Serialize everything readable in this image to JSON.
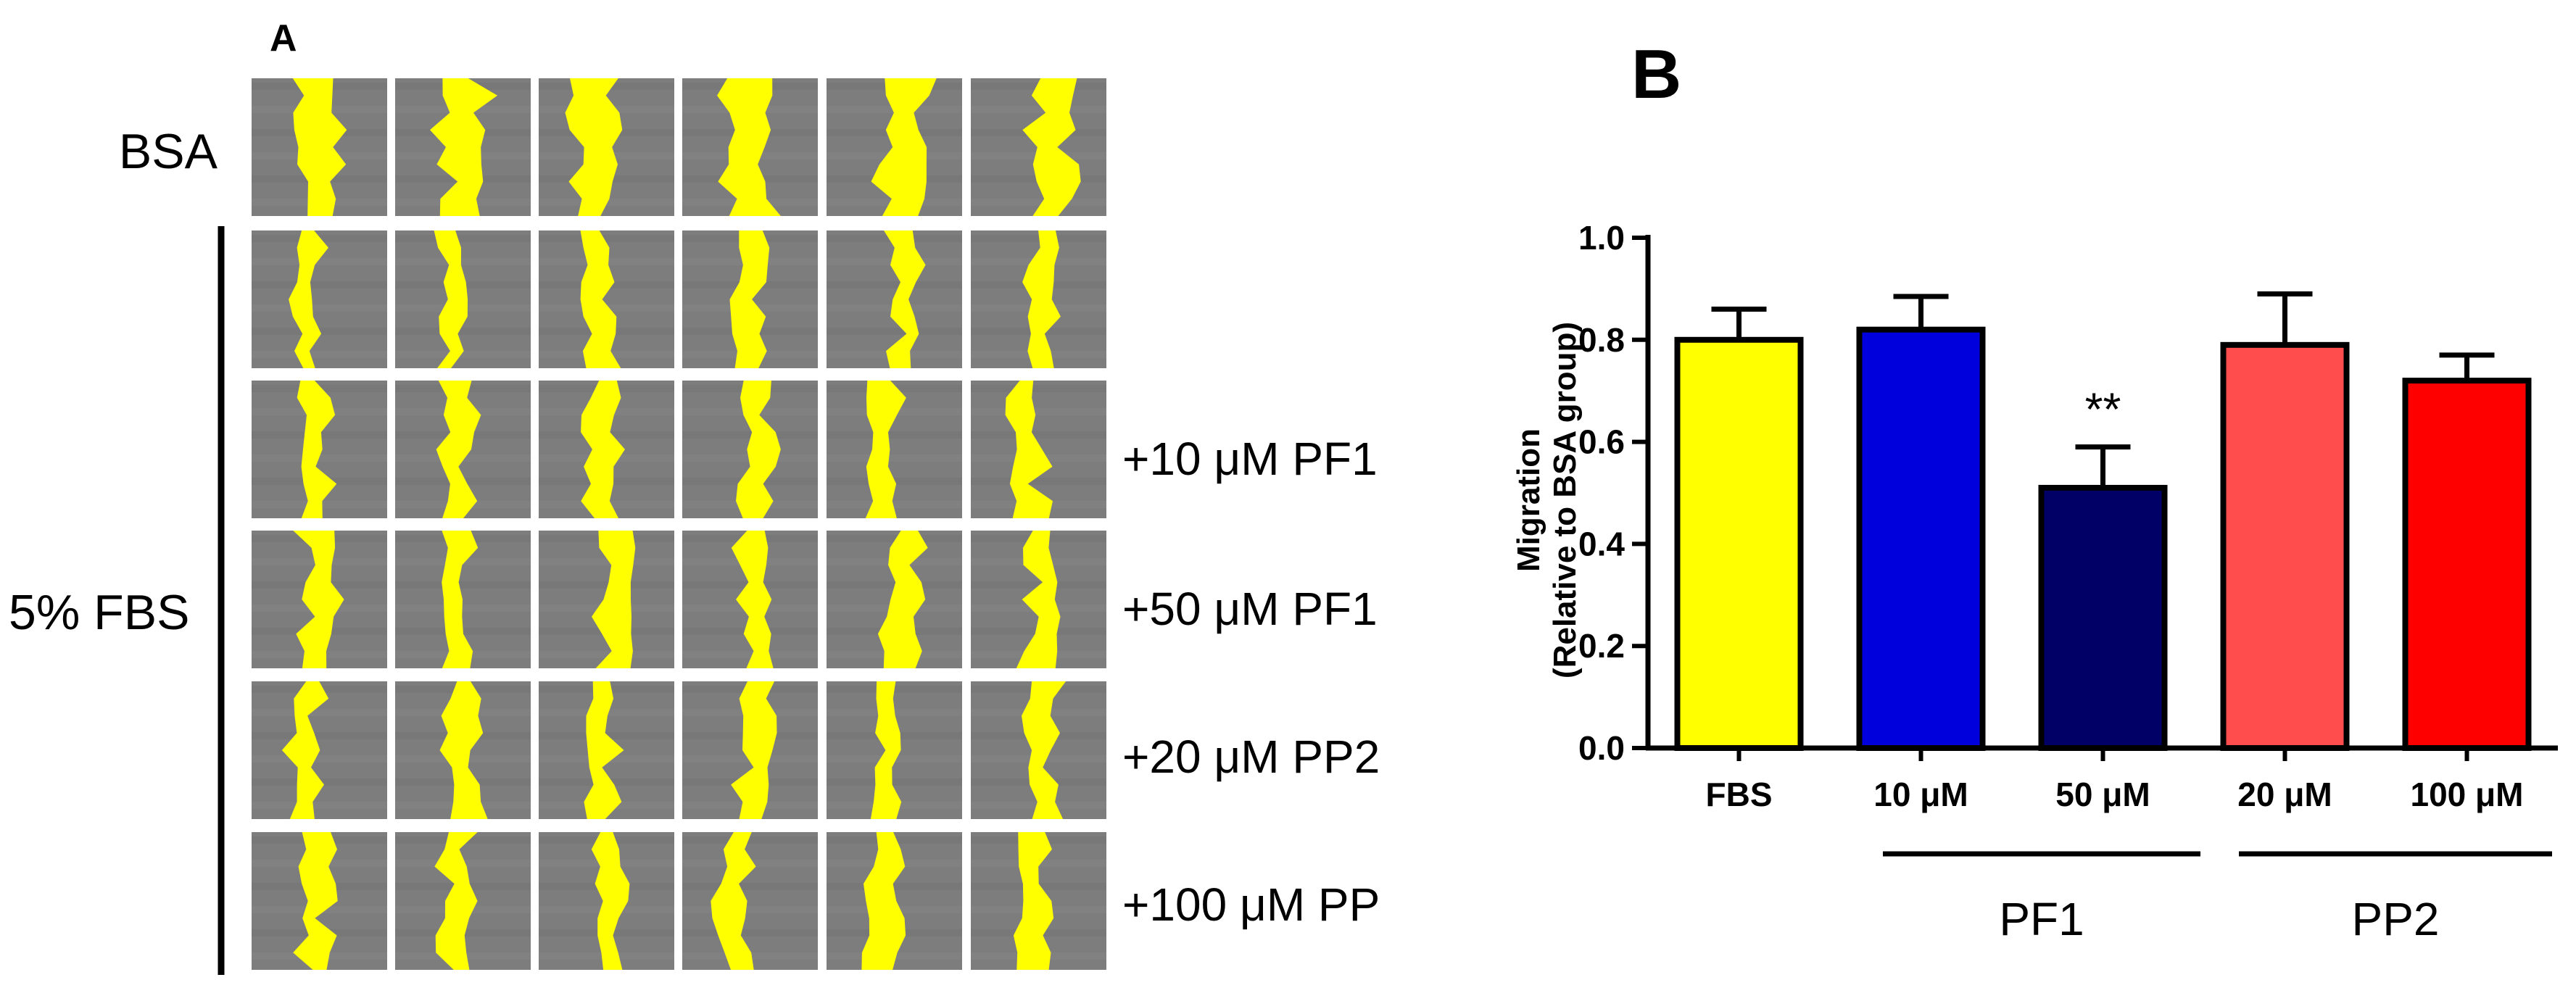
{
  "panel_a": {
    "panel_letter": "A",
    "rows": [
      {
        "label": "BSA",
        "sub_label": ""
      },
      {
        "label": "",
        "sub_label": ""
      },
      {
        "label": "",
        "sub_label": "+10 μM PF1"
      },
      {
        "label": "",
        "sub_label": "+50 μM PF1"
      },
      {
        "label": "",
        "sub_label": "+20 μM PP2"
      },
      {
        "label": "",
        "sub_label": "+100 μM PP"
      }
    ],
    "group_label": "5% FBS",
    "columns_count": 6,
    "colors": {
      "wound_fill": "#ffff00",
      "tile_background": "#7d7d7d"
    }
  },
  "chart_data": {
    "type": "bar",
    "panel_letter": "B",
    "title": "",
    "categories": [
      "FBS",
      "10 μM",
      "50 μM",
      "20 μM",
      "100 μM"
    ],
    "values": [
      0.8,
      0.82,
      0.51,
      0.79,
      0.72
    ],
    "errors": [
      0.06,
      0.065,
      0.08,
      0.1,
      0.05
    ],
    "bar_colors": [
      "#ffff00",
      "#0000dd",
      "#000066",
      "#ff4d4d",
      "#ff0000"
    ],
    "significance": [
      "",
      "",
      "**",
      "",
      ""
    ],
    "ylabel_line1": "Migration",
    "ylabel_line2": "(Relative to BSA group)",
    "xlabel": "",
    "ylim": [
      0.0,
      1.0
    ],
    "yticks": [
      "0.0",
      "0.2",
      "0.4",
      "0.6",
      "0.8",
      "1.0"
    ],
    "groups": [
      {
        "label": "PF1",
        "categories": [
          "10 μM",
          "50 μM"
        ]
      },
      {
        "label": "PP2",
        "categories": [
          "20 μM",
          "100 μM"
        ]
      }
    ],
    "grid": false,
    "legend": "none"
  }
}
